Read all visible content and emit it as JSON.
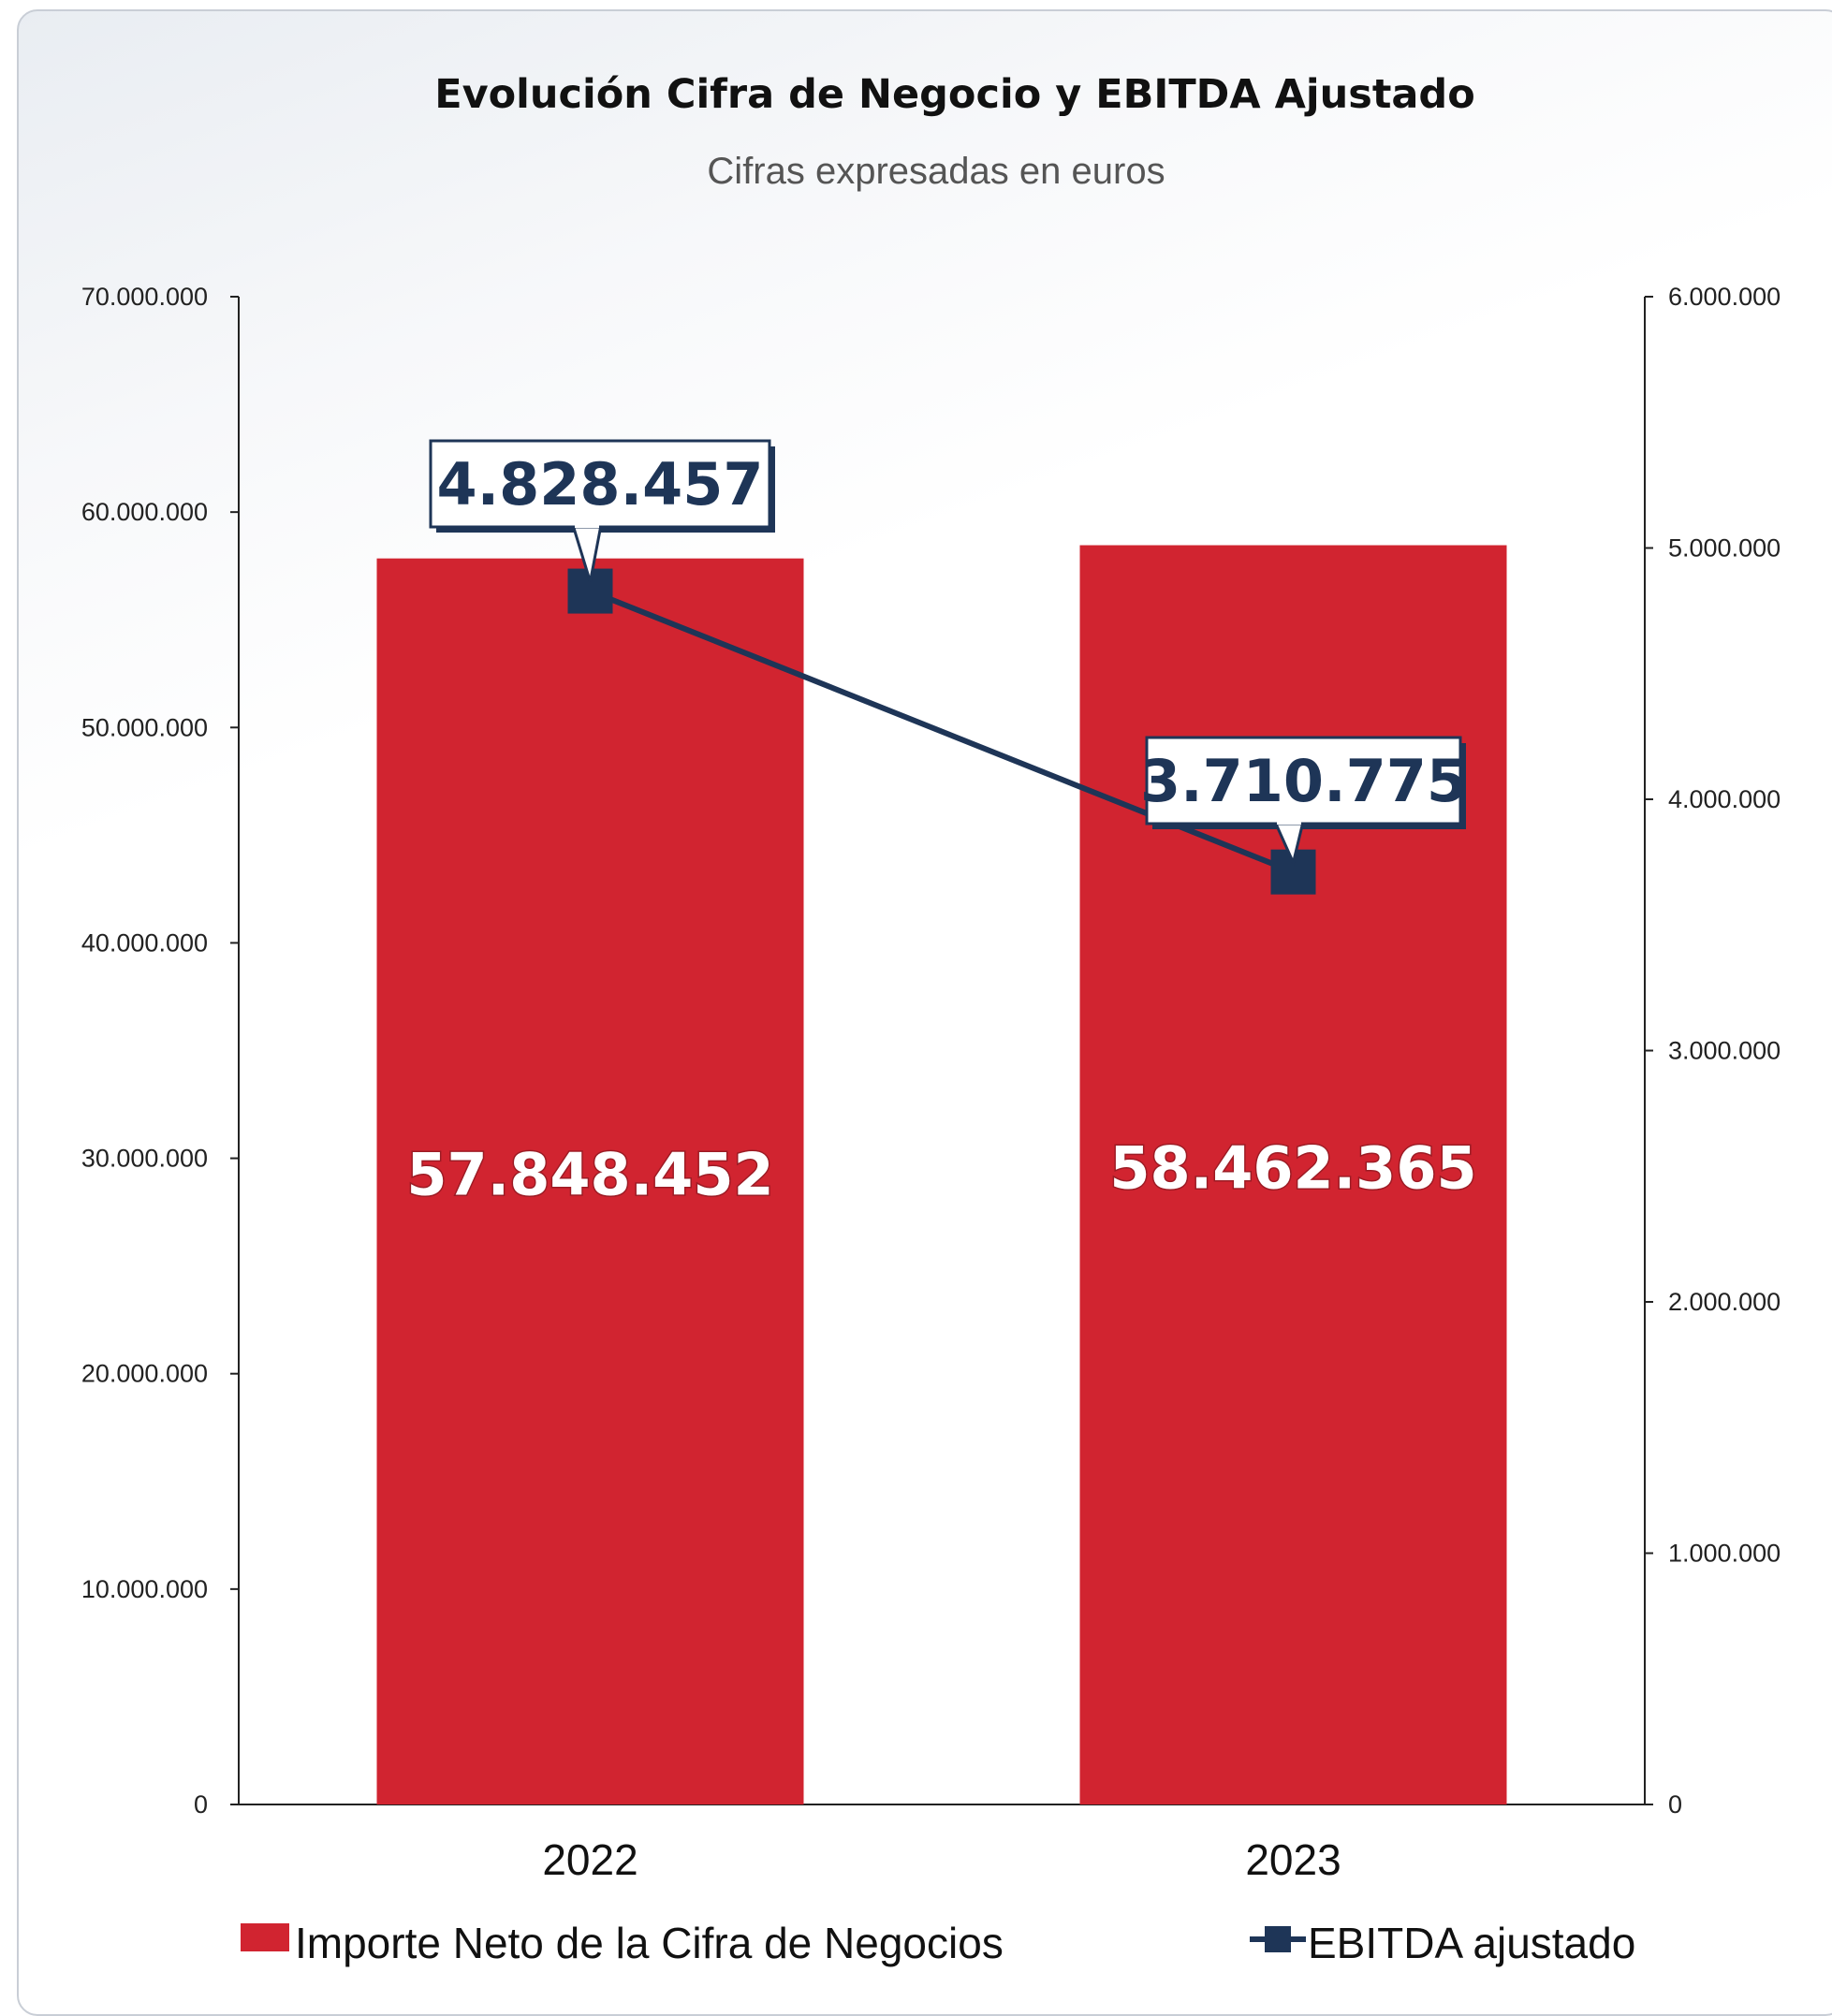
{
  "chart_data": {
    "type": "bar",
    "title": "Evolución Cifra de Negocio y EBITDA Ajustado",
    "subtitle": "Cifras expresadas en euros",
    "categories": [
      "2022",
      "2023"
    ],
    "y_left": {
      "ylim": [
        0,
        70000000
      ],
      "ticks": [
        0,
        10000000,
        20000000,
        30000000,
        40000000,
        50000000,
        60000000,
        70000000
      ],
      "tick_labels": [
        "0",
        "10.000.000",
        "20.000.000",
        "30.000.000",
        "40.000.000",
        "50.000.000",
        "60.000.000",
        "70.000.000"
      ]
    },
    "y_right": {
      "ylim": [
        0,
        6000000
      ],
      "ticks": [
        0,
        1000000,
        2000000,
        3000000,
        4000000,
        5000000,
        6000000
      ],
      "tick_labels": [
        "0",
        "1.000.000",
        "2.000.000",
        "3.000.000",
        "4.000.000",
        "5.000.000",
        "6.000.000"
      ]
    },
    "series": [
      {
        "name": "Importe Neto de la Cifra de Negocios",
        "type": "bar",
        "axis": "left",
        "color": "#d12430",
        "values": [
          57848452,
          58462365
        ],
        "labels": [
          "57.848.452",
          "58.462.365"
        ]
      },
      {
        "name": "EBITDA ajustado",
        "type": "line",
        "axis": "right",
        "color": "#1e3557",
        "values": [
          4828457,
          3710775
        ],
        "labels": [
          "4.828.457",
          "3.710.775"
        ]
      }
    ],
    "grid": false,
    "legend_position": "bottom"
  }
}
